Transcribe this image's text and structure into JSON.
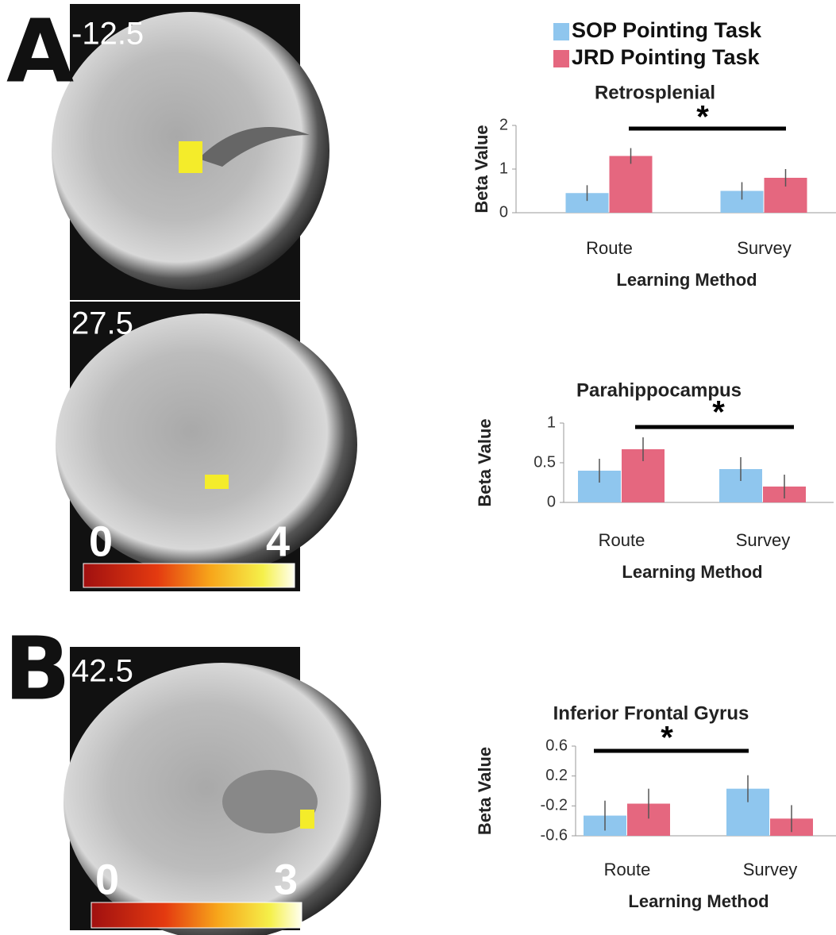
{
  "panel_labels": [
    "A",
    "B"
  ],
  "slices": [
    {
      "coordinate": "-12.5"
    },
    {
      "coordinate": "27.5",
      "colorbar": [
        "0",
        "4"
      ]
    },
    {
      "coordinate": "42.5",
      "colorbar": [
        "0",
        "3"
      ]
    }
  ],
  "legend": [
    {
      "name": "SOP Pointing Task",
      "color": "#8fc6ee"
    },
    {
      "name": "JRD Pointing Task",
      "color": "#e5677f"
    }
  ],
  "chart_data": [
    {
      "type": "bar",
      "title": "Retrosplenial",
      "xlabel": "Learning Method",
      "ylabel": "Beta Value",
      "categories": [
        "Route",
        "Survey"
      ],
      "series": [
        {
          "values": [
            0.45,
            0.5
          ],
          "errors": [
            0.18,
            0.2
          ]
        },
        {
          "values": [
            1.3,
            0.8
          ],
          "errors": [
            0.18,
            0.2
          ]
        }
      ],
      "ylim": [
        0,
        2
      ],
      "yticks": [
        0,
        1,
        2
      ],
      "annotation": "*"
    },
    {
      "type": "bar",
      "title": "Parahippocampus",
      "xlabel": "Learning Method",
      "ylabel": "Beta Value",
      "categories": [
        "Route",
        "Survey"
      ],
      "series": [
        {
          "values": [
            0.4,
            0.42
          ],
          "errors": [
            0.15,
            0.15
          ]
        },
        {
          "values": [
            0.67,
            0.2
          ],
          "errors": [
            0.15,
            0.15
          ]
        }
      ],
      "ylim": [
        0,
        1
      ],
      "yticks": [
        0,
        0.5,
        1
      ],
      "annotation": "*"
    },
    {
      "type": "bar",
      "title": "Inferior Frontal Gyrus",
      "xlabel": "Learning Method",
      "ylabel": "Beta Value",
      "categories": [
        "Route",
        "Survey"
      ],
      "series": [
        {
          "values": [
            -0.33,
            0.03
          ],
          "errors": [
            0.2,
            0.18
          ]
        },
        {
          "values": [
            -0.17,
            -0.37
          ],
          "errors": [
            0.2,
            0.18
          ]
        }
      ],
      "ylim": [
        -0.6,
        0.6
      ],
      "yticks": [
        -0.6,
        -0.2,
        0.2,
        0.6
      ],
      "annotation": "*"
    }
  ]
}
